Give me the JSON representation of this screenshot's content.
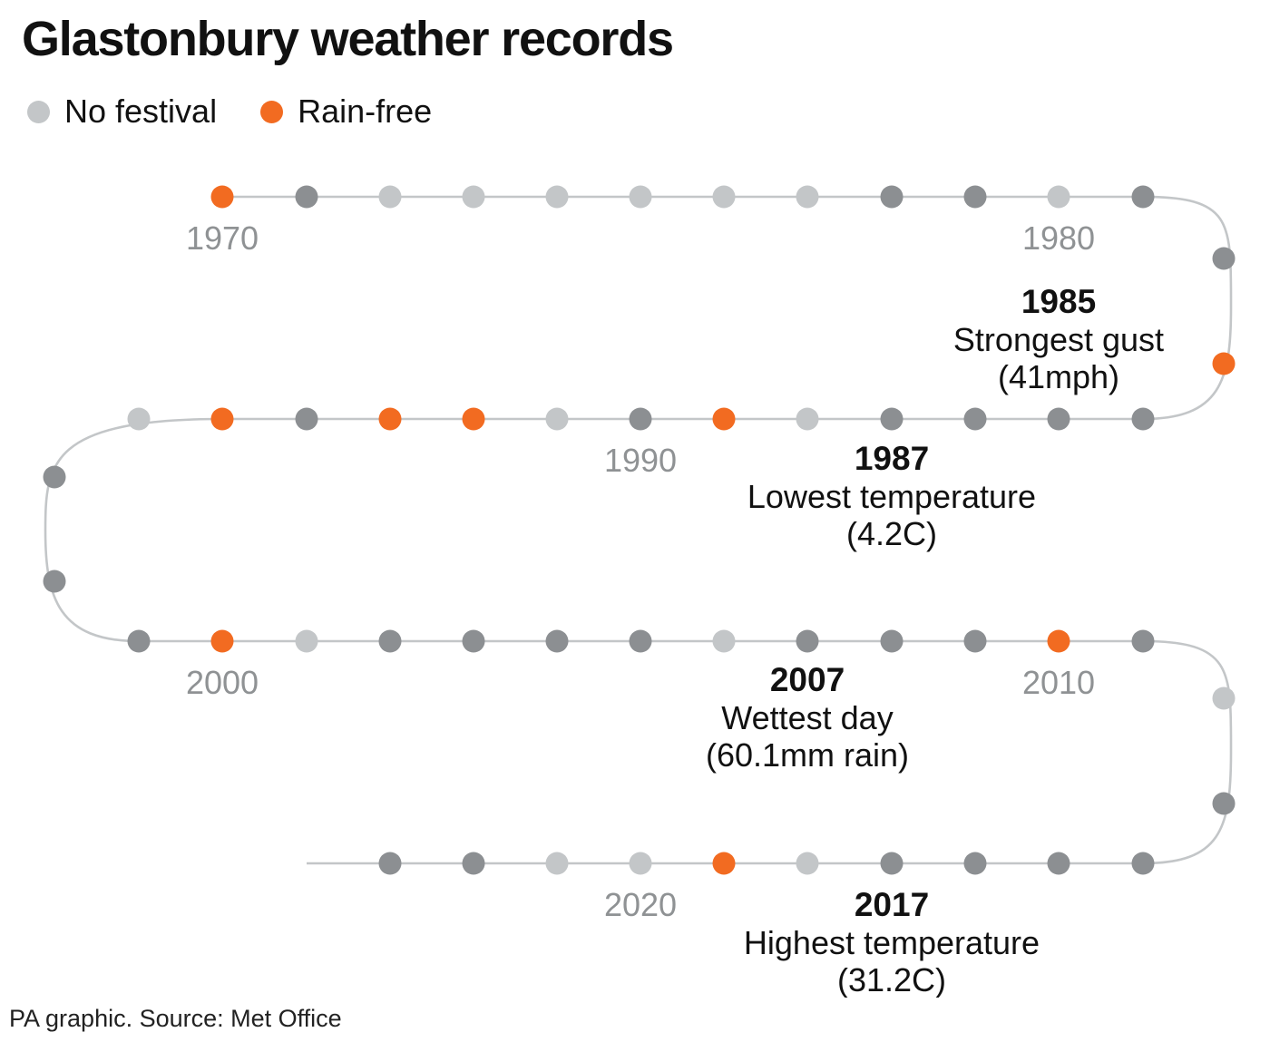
{
  "title": "Glastonbury weather records",
  "legend": [
    {
      "label": "No festival",
      "color": "#c3c6c8"
    },
    {
      "label": "Rain-free",
      "color": "#f26b21"
    }
  ],
  "source": "PA graphic. Source: Met Office",
  "colors": {
    "festival": "#8c8f92",
    "no_festival": "#c3c6c8",
    "rain_free": "#f26b21",
    "line": "#c3c6c8"
  },
  "chart_data": {
    "type": "scatter",
    "subtype": "serpentine-timeline",
    "title": "Glastonbury weather records",
    "x_label": "Year",
    "years": [
      1970,
      1971,
      1972,
      1973,
      1974,
      1975,
      1976,
      1977,
      1978,
      1979,
      1980,
      1981,
      1982,
      1983,
      1984,
      1985,
      1986,
      1987,
      1988,
      1989,
      1990,
      1991,
      1992,
      1993,
      1994,
      1995,
      1996,
      1997,
      1998,
      1999,
      2000,
      2001,
      2002,
      2003,
      2004,
      2005,
      2006,
      2007,
      2008,
      2009,
      2010,
      2011,
      2012,
      2013,
      2014,
      2015,
      2016,
      2017,
      2018,
      2019,
      2020,
      2021,
      2022,
      2023
    ],
    "status": [
      "rain-free",
      "festival",
      "no-festival",
      "no-festival",
      "no-festival",
      "no-festival",
      "no-festival",
      "no-festival",
      "festival",
      "festival",
      "no-festival",
      "festival",
      "festival",
      "rain-free",
      "festival",
      "festival",
      "festival",
      "festival",
      "no-festival",
      "rain-free",
      "festival",
      "no-festival",
      "rain-free",
      "rain-free",
      "festival",
      "rain-free",
      "no-festival",
      "festival",
      "festival",
      "festival",
      "rain-free",
      "no-festival",
      "festival",
      "festival",
      "festival",
      "festival",
      "no-festival",
      "festival",
      "festival",
      "festival",
      "rain-free",
      "festival",
      "no-festival",
      "festival",
      "festival",
      "festival",
      "festival",
      "festival",
      "no-festival",
      "rain-free",
      "no-festival",
      "no-festival",
      "festival",
      "festival"
    ],
    "year_labels": [
      "1970",
      "1980",
      "1990",
      "2000",
      "2010",
      "2020"
    ],
    "records": [
      {
        "year": "1985",
        "label": "Strongest gust",
        "value": "(41mph)"
      },
      {
        "year": "1987",
        "label": "Lowest temperature",
        "value": "(4.2C)"
      },
      {
        "year": "2007",
        "label": "Wettest day",
        "value": "(60.1mm rain)"
      },
      {
        "year": "2017",
        "label": "Highest temperature",
        "value": "(31.2C)"
      }
    ]
  }
}
